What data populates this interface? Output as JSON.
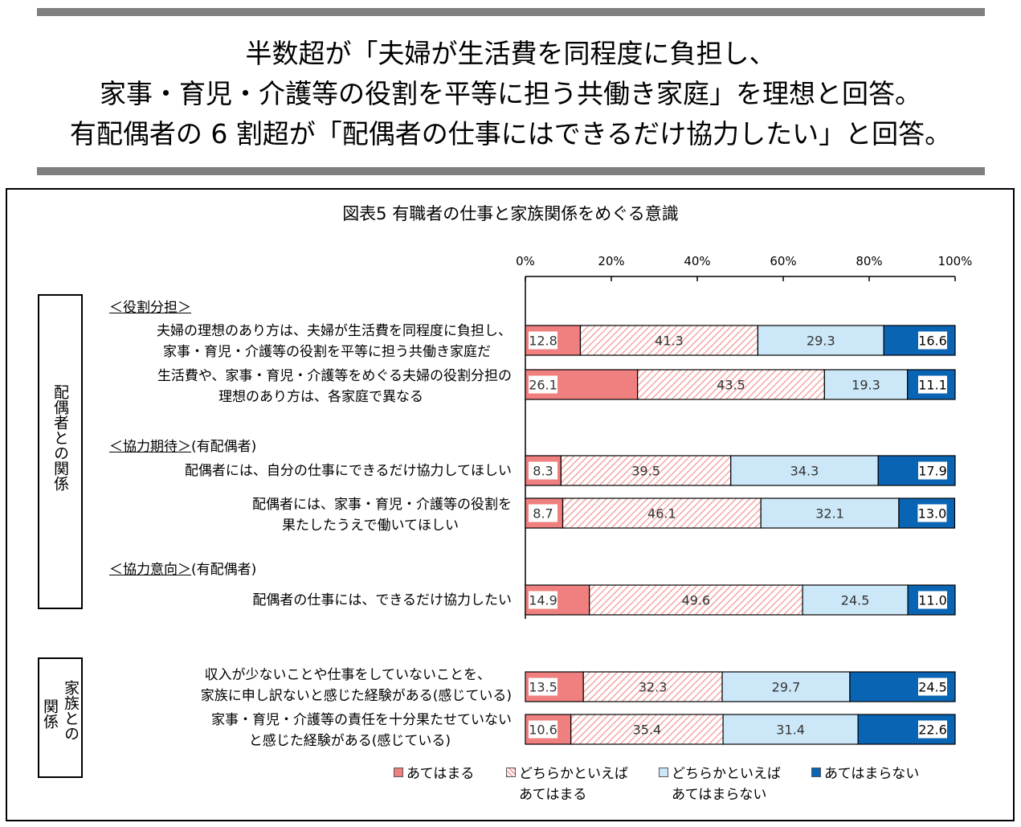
{
  "headline": {
    "line1": "半数超が「夫婦が生活費を同程度に負担し、",
    "line2": "家事・育児・介護等の役割を平等に担う共働き家庭」を理想と回答。",
    "line3": "有配偶者の 6 割超が「配偶者の仕事にはできるだけ協力したい」と回答。"
  },
  "groups": {
    "spouse": "配偶者との関係",
    "family_line1": "家族との",
    "family_line2": "関係"
  },
  "sections": {
    "role": "＜役割分担＞",
    "expect": "＜協力期待＞",
    "expect_suffix": "(有配偶者)",
    "intent": "＜協力意向＞",
    "intent_suffix": "(有配偶者)"
  },
  "row_labels": {
    "r1a": "夫婦の理想のあり方は、夫婦が生活費を同程度に負担し、",
    "r1b": "家事・育児・介護等の役割を平等に担う共働き家庭だ",
    "r2a": "生活費や、家事・育児・介護等をめぐる夫婦の役割分担の",
    "r2b": "理想のあり方は、各家庭で異なる",
    "r3a": "配偶者には、自分の仕事にできるだけ協力してほしい",
    "r4a": "配偶者には、家事・育児・介護等の役割を",
    "r4b": "果たしたうえで働いてほしい",
    "r5a": "配偶者の仕事には、できるだけ協力したい",
    "r6a": "収入が少ないことや仕事をしていないことを、",
    "r6b": "家族に申し訳ないと感じた経験がある(感じている)",
    "r7a": "家事・育児・介護等の責任を十分果たせていない",
    "r7b": "と感じた経験がある(感じている)"
  },
  "legend": {
    "s1": "あてはまる",
    "s2a": "どちらかといえば",
    "s2b": "あてはまる",
    "s3a": "どちらかといえば",
    "s3b": "あてはまらない",
    "s4": "あてはまらない"
  },
  "colors": {
    "s1": "#f08080",
    "s2_stripe": "#f4a6a6",
    "s3": "#cce8f8",
    "s4": "#0a64b4"
  },
  "chart_data": {
    "type": "bar",
    "orientation": "horizontal",
    "stacked": "100%",
    "title": "図表5  有職者の仕事と家族関係をめぐる意識",
    "xlim": [
      0,
      100
    ],
    "xticks": [
      "0%",
      "20%",
      "40%",
      "60%",
      "80%",
      "100%"
    ],
    "series_names": [
      "あてはまる",
      "どちらかといえばあてはまる",
      "どちらかといえばあてはまらない",
      "あてはまらない"
    ],
    "rows": [
      {
        "id": "r1",
        "values": [
          12.8,
          41.3,
          29.3,
          16.6
        ]
      },
      {
        "id": "r2",
        "values": [
          26.1,
          43.5,
          19.3,
          11.1
        ]
      },
      {
        "id": "r3",
        "values": [
          8.3,
          39.5,
          34.3,
          17.9
        ]
      },
      {
        "id": "r4",
        "values": [
          8.7,
          46.1,
          32.1,
          13.0
        ]
      },
      {
        "id": "r5",
        "values": [
          14.9,
          49.6,
          24.5,
          11.0
        ]
      },
      {
        "id": "r6",
        "values": [
          13.5,
          32.3,
          29.7,
          24.5
        ]
      },
      {
        "id": "r7",
        "values": [
          10.6,
          35.4,
          31.4,
          22.6
        ]
      }
    ]
  }
}
